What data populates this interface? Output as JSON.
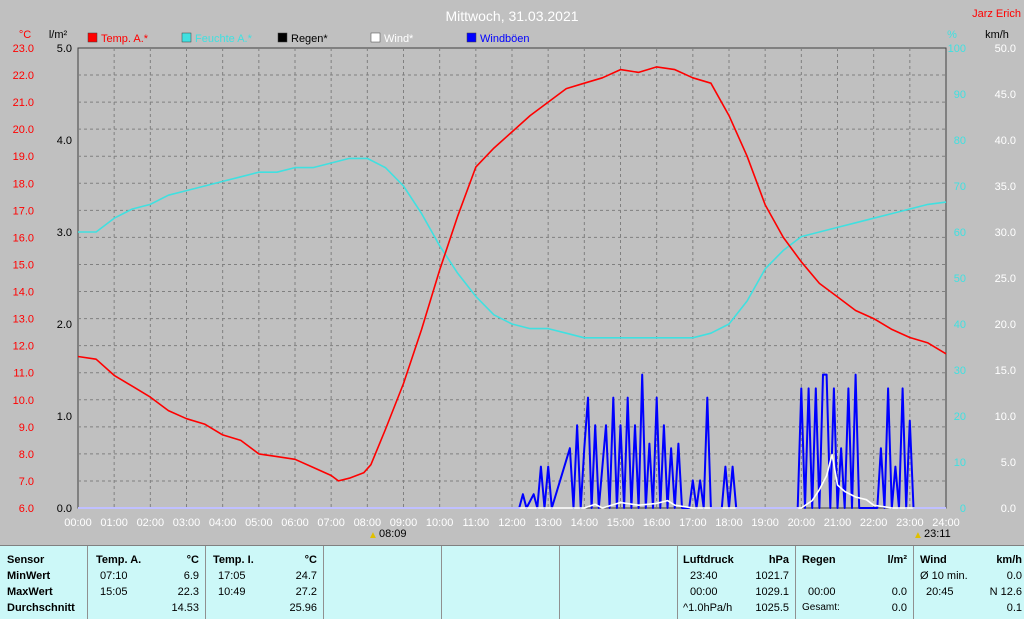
{
  "chart_data": {
    "type": "line",
    "title": "Mittwoch, 31.03.2021",
    "credit": "Jarz Erich",
    "x_ticks": [
      "00:00",
      "01:00",
      "02:00",
      "03:00",
      "04:00",
      "05:00",
      "06:00",
      "07:00",
      "08:00",
      "09:00",
      "10:00",
      "11:00",
      "12:00",
      "13:00",
      "14:00",
      "15:00",
      "16:00",
      "17:00",
      "18:00",
      "19:00",
      "20:00",
      "21:00",
      "22:00",
      "23:00",
      "24:00"
    ],
    "xlim": [
      0,
      24
    ],
    "sunrise_label": "08:09",
    "sunset_label": "23:11",
    "axes": {
      "temp": {
        "unit": "°C",
        "min": 6.0,
        "max": 23.0,
        "ticks": [
          "6.0",
          "7.0",
          "8.0",
          "9.0",
          "10.0",
          "11.0",
          "12.0",
          "13.0",
          "14.0",
          "15.0",
          "16.0",
          "17.0",
          "18.0",
          "19.0",
          "20.0",
          "21.0",
          "22.0",
          "23.0"
        ],
        "color": "#ff0000"
      },
      "rain": {
        "unit": "l/m²",
        "min": 0.0,
        "max": 5.0,
        "ticks": [
          "0.0",
          "1.0",
          "2.0",
          "3.0",
          "4.0",
          "5.0"
        ],
        "color": "#000000"
      },
      "humidity": {
        "unit": "%",
        "min": 0,
        "max": 100,
        "ticks": [
          "0",
          "10",
          "20",
          "30",
          "40",
          "50",
          "60",
          "70",
          "80",
          "90",
          "100"
        ],
        "color": "#40e0e0"
      },
      "wind": {
        "unit": "km/h",
        "min": 0.0,
        "max": 50.0,
        "ticks": [
          "0.0",
          "5.0",
          "10.0",
          "15.0",
          "20.0",
          "25.0",
          "30.0",
          "35.0",
          "40.0",
          "45.0",
          "50.0"
        ],
        "color": "#000000"
      }
    },
    "legend": [
      {
        "name": "Temp. A.*",
        "color": "#ff0000"
      },
      {
        "name": "Feuchte A.*",
        "color": "#40e0e0"
      },
      {
        "name": "Regen*",
        "color": "#000000"
      },
      {
        "name": "Wind*",
        "color": "#ffffff"
      },
      {
        "name": "Windböen",
        "color": "#0000ff"
      }
    ],
    "series": [
      {
        "name": "Temp. A.*",
        "axis": "temp",
        "color": "#ff0000",
        "x": [
          0,
          0.5,
          1,
          1.5,
          2,
          2.5,
          3,
          3.5,
          4,
          4.5,
          5,
          5.5,
          6,
          6.5,
          7,
          7.2,
          7.5,
          7.9,
          8.1,
          8.5,
          9,
          9.5,
          10,
          10.5,
          11,
          11.5,
          12,
          12.5,
          13,
          13.5,
          14,
          14.5,
          15,
          15.5,
          16,
          16.5,
          17,
          17.5,
          18,
          18.5,
          19,
          19.5,
          20,
          20.5,
          21,
          21.5,
          22,
          22.5,
          23,
          23.5,
          24
        ],
        "y": [
          11.6,
          11.5,
          10.9,
          10.5,
          10.1,
          9.6,
          9.3,
          9.1,
          8.7,
          8.5,
          8.0,
          7.9,
          7.8,
          7.5,
          7.2,
          7.0,
          7.1,
          7.3,
          7.6,
          8.9,
          10.6,
          12.6,
          14.8,
          16.8,
          18.6,
          19.3,
          19.9,
          20.5,
          21.0,
          21.5,
          21.7,
          21.9,
          22.2,
          22.1,
          22.3,
          22.2,
          21.9,
          21.7,
          20.5,
          19.0,
          17.2,
          16.0,
          15.1,
          14.3,
          13.8,
          13.3,
          13.0,
          12.6,
          12.3,
          12.1,
          11.7
        ]
      },
      {
        "name": "Feuchte A.*",
        "axis": "humidity",
        "color": "#40e0e0",
        "x": [
          0,
          0.5,
          1,
          1.5,
          2,
          2.5,
          3,
          3.5,
          4,
          4.5,
          5,
          5.5,
          6,
          6.5,
          7,
          7.5,
          8,
          8.5,
          9,
          9.5,
          10,
          10.5,
          11,
          11.5,
          12,
          12.5,
          13,
          13.5,
          14,
          14.5,
          15,
          15.5,
          16,
          16.5,
          17,
          17.5,
          18,
          18.5,
          19,
          19.5,
          20,
          20.5,
          21,
          21.5,
          22,
          22.5,
          23,
          23.5,
          24
        ],
        "y": [
          60,
          60,
          63,
          65,
          66,
          68,
          69,
          70,
          71,
          72,
          73,
          73,
          74,
          74,
          75,
          76,
          76,
          74,
          70,
          64,
          57,
          51,
          46,
          42,
          40,
          39,
          39,
          38,
          37,
          37,
          37,
          37,
          37,
          37,
          37,
          38,
          40,
          45,
          52,
          56,
          59,
          60,
          61,
          62,
          63,
          64,
          65,
          66,
          66.5
        ]
      },
      {
        "name": "Wind*",
        "axis": "wind",
        "color": "#ffffff",
        "x": [
          0,
          14,
          14.3,
          14.5,
          15,
          15.5,
          16,
          16.3,
          16.5,
          17,
          20,
          20.3,
          20.5,
          20.7,
          20.85,
          21,
          21.2,
          21.5,
          21.8,
          22,
          22.5,
          24
        ],
        "y": [
          0,
          0,
          0.4,
          0,
          0.6,
          0.3,
          0.5,
          0.8,
          0.3,
          0,
          0,
          0.8,
          2.0,
          3.5,
          5.8,
          2.5,
          1.8,
          1.2,
          0.9,
          0.3,
          0,
          0
        ]
      },
      {
        "name": "Windböen",
        "axis": "wind",
        "color": "#0000ff",
        "x": [
          0,
          12.2,
          12.3,
          12.4,
          12.6,
          12.7,
          12.8,
          12.9,
          13.0,
          13.1,
          13.6,
          13.7,
          13.8,
          13.9,
          14.0,
          14.1,
          14.2,
          14.3,
          14.4,
          14.6,
          14.7,
          14.8,
          14.9,
          15.0,
          15.1,
          15.2,
          15.3,
          15.4,
          15.5,
          15.6,
          15.7,
          15.8,
          15.9,
          16.0,
          16.1,
          16.2,
          16.3,
          16.4,
          16.5,
          16.6,
          16.7,
          16.9,
          17.0,
          17.1,
          17.2,
          17.3,
          17.4,
          17.5,
          17.6,
          17.8,
          17.9,
          18.0,
          18.1,
          18.2,
          18.3,
          18.4,
          18.5,
          18.6,
          19.9,
          20.0,
          20.1,
          20.2,
          20.3,
          20.4,
          20.5,
          20.6,
          20.7,
          20.8,
          20.9,
          21.0,
          21.1,
          21.2,
          21.3,
          21.4,
          21.5,
          21.6,
          21.7,
          21.8,
          21.9,
          22.0,
          22.1,
          22.2,
          22.3,
          22.4,
          22.5,
          22.6,
          22.7,
          22.8,
          22.9,
          23.0,
          23.1,
          23.2,
          23.3,
          23.4,
          23.5,
          23.6,
          23.7,
          24
        ],
        "y": [
          0,
          0,
          1.5,
          0,
          1.5,
          0,
          4.5,
          0,
          4.5,
          0,
          6.5,
          0,
          9,
          0,
          6.5,
          12,
          0,
          9,
          0,
          9,
          0,
          12,
          0,
          9,
          0,
          12,
          0,
          9,
          0,
          14.5,
          0,
          7,
          0,
          12,
          0,
          9,
          0,
          6.5,
          0,
          7,
          0,
          0,
          3,
          0,
          3,
          0,
          12,
          0,
          0,
          0,
          4.5,
          0,
          4.5,
          0,
          0,
          0,
          0,
          0,
          0,
          13,
          0,
          13,
          0,
          13,
          0,
          14.5,
          14.5,
          0,
          13,
          0,
          6.5,
          0,
          13,
          0,
          14.5,
          0,
          0,
          0,
          0,
          0,
          0,
          6.5,
          0,
          13,
          0,
          4.5,
          0,
          13,
          0,
          9.5,
          0,
          0,
          0,
          0,
          0,
          0,
          0,
          0
        ]
      }
    ],
    "grid": true,
    "legend_position": "top"
  },
  "stats": {
    "sensor": {
      "header": "Sensor",
      "rows": [
        "MinWert",
        "MaxWert",
        "Durchschnitt"
      ]
    },
    "temp_a": {
      "header": "Temp. A.",
      "unit": "°C",
      "min_time": "07:10",
      "min_val": "6.9",
      "max_time": "15:05",
      "max_val": "22.3",
      "avg": "14.53"
    },
    "temp_i": {
      "header": "Temp. I.",
      "unit": "°C",
      "min_time": "17:05",
      "min_val": "24.7",
      "max_time": "10:49",
      "max_val": "27.2",
      "avg": "25.96"
    },
    "pressure": {
      "header": "Luftdruck",
      "unit": "hPa",
      "min_time": "23:40",
      "min_val": "1021.7",
      "max_time": "00:00",
      "max_val": "1029.1",
      "trend_label": "^1.0hPa/h",
      "trend_val": "1025.5"
    },
    "rain": {
      "header": "Regen",
      "unit": "l/m²",
      "max_time": "00:00",
      "max_val": "0.0",
      "total_label": "Gesamt:",
      "total_val": "0.0"
    },
    "wind": {
      "header": "Wind",
      "unit": "km/h",
      "min_label": "Ø 10 min.",
      "min_val": "0.0",
      "max_time": "20:45",
      "max_val": "N 12.6",
      "avg": "0.1"
    }
  }
}
